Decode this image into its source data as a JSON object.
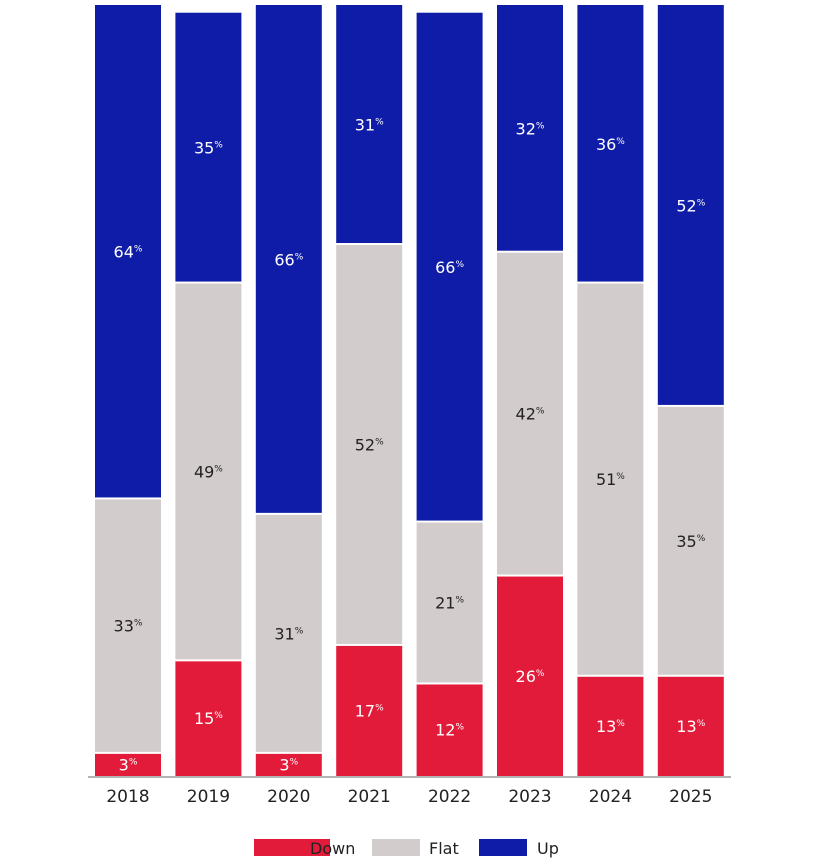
{
  "chart_data": {
    "type": "bar",
    "stacked": true,
    "percent": true,
    "categories": [
      "2018",
      "2019",
      "2020",
      "2021",
      "2022",
      "2023",
      "2024",
      "2025"
    ],
    "series": [
      {
        "name": "Down",
        "color": "#e31b3b",
        "label_color": "#ffffff",
        "values": [
          3,
          15,
          3,
          17,
          12,
          26,
          13,
          13
        ]
      },
      {
        "name": "Flat",
        "color": "#d3cccc",
        "label_color": "#222222",
        "values": [
          33,
          49,
          31,
          52,
          21,
          42,
          51,
          35
        ]
      },
      {
        "name": "Up",
        "color": "#0f1ca8",
        "label_color": "#ffffff",
        "values": [
          64,
          35,
          66,
          31,
          66,
          32,
          36,
          52
        ]
      }
    ],
    "value_suffix": "%",
    "ylim": [
      0,
      100
    ],
    "legend_position": "bottom-center",
    "title": "",
    "xlabel": "",
    "ylabel": ""
  }
}
